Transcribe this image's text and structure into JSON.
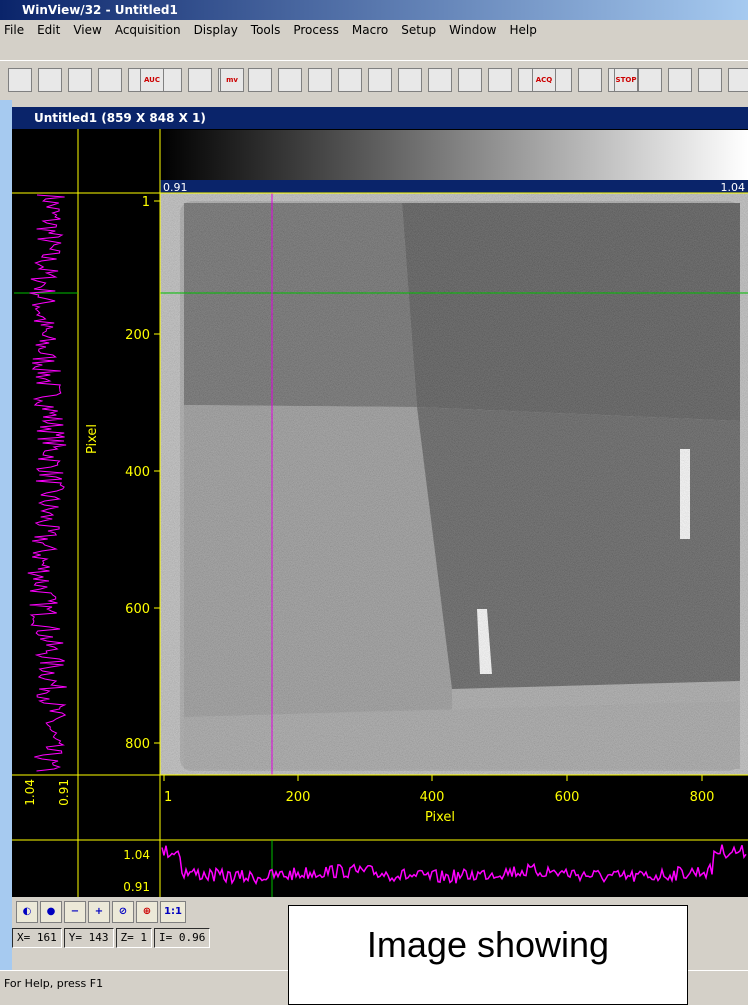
{
  "window": {
    "title": "WinView/32 - Untitled1"
  },
  "menu": [
    "File",
    "Edit",
    "View",
    "Acquisition",
    "Display",
    "Tools",
    "Process",
    "Macro",
    "Setup",
    "Window",
    "Help"
  ],
  "toolbar": {
    "buttons": [
      "AUC",
      "mv",
      "ACQ",
      "STOP"
    ]
  },
  "image_window": {
    "title": "Untitled1 (859 X 848 X 1)",
    "colorbar": {
      "min_label": "0.91",
      "max_label": "1.04"
    },
    "y_axis": {
      "label": "Pixel",
      "ticks": [
        "1",
        "200",
        "400",
        "600",
        "800"
      ]
    },
    "x_axis": {
      "label": "Pixel",
      "ticks": [
        "1",
        "200",
        "400",
        "600",
        "800"
      ]
    },
    "side_profile": {
      "max": "1.04",
      "min": "0.91"
    },
    "bottom_profile": {
      "max": "1.04",
      "min": "0.91"
    }
  },
  "zoom_toolbar": {
    "zoom_label": "1:1"
  },
  "status_fields": [
    "X= 161",
    "Y= 143",
    "Z= 1",
    "I= 0.96"
  ],
  "status_bar": "For Help, press F1",
  "overlay": "Image showing"
}
